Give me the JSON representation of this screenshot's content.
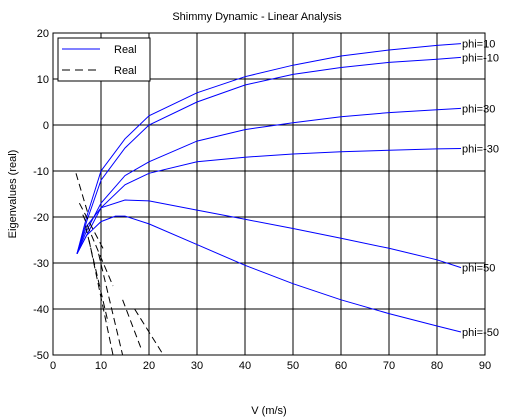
{
  "chart_data": {
    "type": "line",
    "title": "Shimmy Dynamic - Linear Analysis",
    "xlabel": "V (m/s)",
    "ylabel": "Eigenvalues (real)",
    "xlim": [
      0,
      90
    ],
    "ylim": [
      -50,
      20
    ],
    "xticks": [
      0,
      10,
      20,
      30,
      40,
      50,
      60,
      70,
      80,
      90
    ],
    "yticks": [
      -50,
      -40,
      -30,
      -20,
      -10,
      0,
      10,
      20
    ],
    "xtick_labels": [
      "0",
      "10",
      "20",
      "30",
      "40",
      "50",
      "60",
      "70",
      "80",
      "90"
    ],
    "ytick_labels": [
      "-50",
      "-40",
      "-30",
      "-20",
      "-10",
      "0",
      "10",
      "20"
    ],
    "grid": true,
    "legend_position": "top-left",
    "legend": [
      {
        "label": "Real",
        "style": "solid",
        "color": "#0000ff"
      },
      {
        "label": "Real",
        "style": "dashed",
        "color": "#000000"
      }
    ],
    "series": [
      {
        "name": "phi=10",
        "color": "#0000ff",
        "style": "solid",
        "x": [
          5,
          7,
          10,
          15,
          20,
          30,
          40,
          50,
          60,
          70,
          80,
          85
        ],
        "y": [
          -28,
          -20,
          -10,
          -3,
          2,
          7,
          10.5,
          13,
          15,
          16.3,
          17.3,
          17.7
        ]
      },
      {
        "name": "phi=-10",
        "color": "#0000ff",
        "style": "solid",
        "x": [
          5,
          7,
          10,
          15,
          20,
          30,
          40,
          50,
          60,
          70,
          80,
          85
        ],
        "y": [
          -28,
          -21,
          -12,
          -5,
          0,
          5,
          8.7,
          11,
          12.5,
          13.6,
          14.3,
          14.7
        ]
      },
      {
        "name": "phi=30",
        "color": "#0000ff",
        "style": "solid",
        "x": [
          5,
          7,
          10,
          15,
          20,
          30,
          40,
          50,
          60,
          70,
          80,
          85
        ],
        "y": [
          -28,
          -23,
          -17,
          -11,
          -8,
          -3.5,
          -1,
          0.5,
          1.8,
          2.7,
          3.3,
          3.6
        ]
      },
      {
        "name": "phi=-30",
        "color": "#0000ff",
        "style": "solid",
        "x": [
          5,
          7,
          10,
          15,
          20,
          30,
          40,
          50,
          60,
          70,
          80,
          85
        ],
        "y": [
          -28,
          -24,
          -18,
          -13,
          -10.5,
          -8,
          -7,
          -6.3,
          -5.8,
          -5.5,
          -5.2,
          -5.1
        ]
      },
      {
        "name": "phi=50",
        "color": "#0000ff",
        "style": "solid",
        "x": [
          5,
          7,
          10,
          15,
          20,
          30,
          40,
          50,
          60,
          70,
          80,
          85
        ],
        "y": [
          -28,
          -22,
          -18,
          -16.3,
          -16.5,
          -18.5,
          -20.5,
          -22.5,
          -24.6,
          -26.8,
          -29.3,
          -31
        ]
      },
      {
        "name": "phi=-50",
        "color": "#0000ff",
        "style": "solid",
        "x": [
          5,
          7,
          10,
          13,
          15,
          20,
          30,
          40,
          50,
          60,
          70,
          80,
          85
        ],
        "y": [
          -28,
          -24,
          -21,
          -19.8,
          -19.8,
          -21.5,
          -26,
          -30.5,
          -34.5,
          -38,
          -41,
          -43.7,
          -45
        ]
      }
    ],
    "dashed_segments": [
      {
        "color": "#000000",
        "x": [
          4.8,
          7.2
        ],
        "y": [
          -10.5,
          -19
        ]
      },
      {
        "color": "#000000",
        "x": [
          5.5,
          10.5
        ],
        "y": [
          -17,
          -27
        ]
      },
      {
        "color": "#000000",
        "x": [
          6.2,
          12.5
        ],
        "y": [
          -19.5,
          -35
        ]
      },
      {
        "color": "#000000",
        "x": [
          6.8,
          11.5
        ],
        "y": [
          -22,
          -43
        ]
      },
      {
        "color": "#000000",
        "x": [
          7.5,
          12.5
        ],
        "y": [
          -25,
          -50
        ]
      },
      {
        "color": "#000000",
        "x": [
          9.5,
          14.5
        ],
        "y": [
          -28,
          -50
        ]
      },
      {
        "color": "#000000",
        "x": [
          14.5,
          18.5
        ],
        "y": [
          -38,
          -49
        ]
      },
      {
        "color": "#000000",
        "x": [
          17,
          23
        ],
        "y": [
          -40,
          -50
        ]
      }
    ],
    "annotations": [
      {
        "text": "phi=10",
        "x": 85,
        "y": 17.7
      },
      {
        "text": "phi=-10",
        "x": 85,
        "y": 14.7
      },
      {
        "text": "phi=30",
        "x": 85,
        "y": 3.6
      },
      {
        "text": "phi=-30",
        "x": 85,
        "y": -5.1
      },
      {
        "text": "phi=50",
        "x": 85,
        "y": -31
      },
      {
        "text": "phi=-50",
        "x": 85,
        "y": -45
      }
    ]
  }
}
